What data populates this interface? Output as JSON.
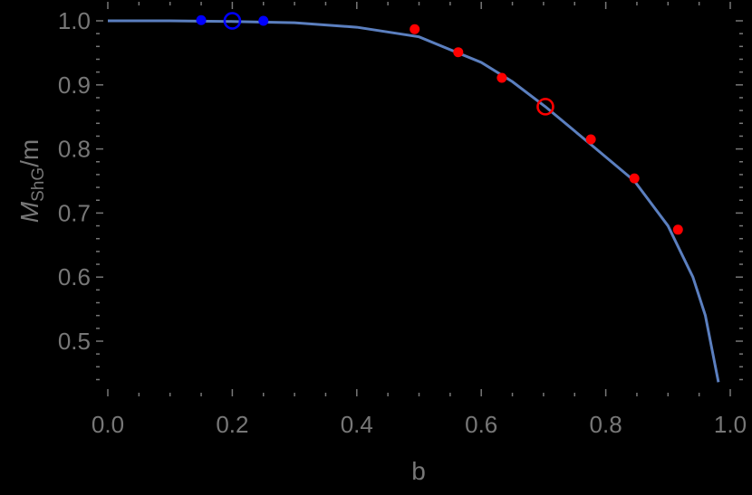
{
  "chart_data": {
    "type": "scatter",
    "title": "",
    "xlabel": "b",
    "ylabel": "M_ShG/m",
    "ylabel_main": "M",
    "ylabel_sub": "ShG",
    "ylabel_tail": "/m",
    "xlim": [
      0.0,
      1.0
    ],
    "ylim": [
      0.43,
      1.01
    ],
    "grid": false,
    "legend": null,
    "x_ticks": [
      "0.0",
      "0.2",
      "0.4",
      "0.6",
      "0.8",
      "1.0"
    ],
    "y_ticks": [
      "0.5",
      "0.6",
      "0.7",
      "0.8",
      "0.9",
      "1.0"
    ],
    "colors": {
      "curve": "#5b7fbf",
      "blue_points": "#0000ff",
      "red_points": "#ff0000",
      "text": "#777777",
      "background": "#000000"
    },
    "series": [
      {
        "name": "curve",
        "type": "line",
        "x": [
          0.0,
          0.1,
          0.2,
          0.3,
          0.4,
          0.5,
          0.6,
          0.65,
          0.703,
          0.776,
          0.846,
          0.9,
          0.94,
          0.96,
          0.981
        ],
        "y": [
          1.0,
          1.0,
          0.999,
          0.997,
          0.99,
          0.975,
          0.935,
          0.905,
          0.866,
          0.807,
          0.75,
          0.68,
          0.6,
          0.54,
          0.436
        ]
      },
      {
        "name": "blue filled",
        "type": "scatter",
        "marker": "filled-circle",
        "x": [
          0.15,
          0.25
        ],
        "y": [
          1.001,
          1.0
        ]
      },
      {
        "name": "blue open",
        "type": "scatter",
        "marker": "open-circle",
        "x": [
          0.2
        ],
        "y": [
          1.0
        ]
      },
      {
        "name": "red filled",
        "type": "scatter",
        "marker": "filled-circle",
        "x": [
          0.493,
          0.563,
          0.633,
          0.776,
          0.846,
          0.916
        ],
        "y": [
          0.987,
          0.951,
          0.911,
          0.815,
          0.754,
          0.674
        ]
      },
      {
        "name": "red open",
        "type": "scatter",
        "marker": "open-circle",
        "x": [
          0.703
        ],
        "y": [
          0.866
        ]
      }
    ]
  }
}
